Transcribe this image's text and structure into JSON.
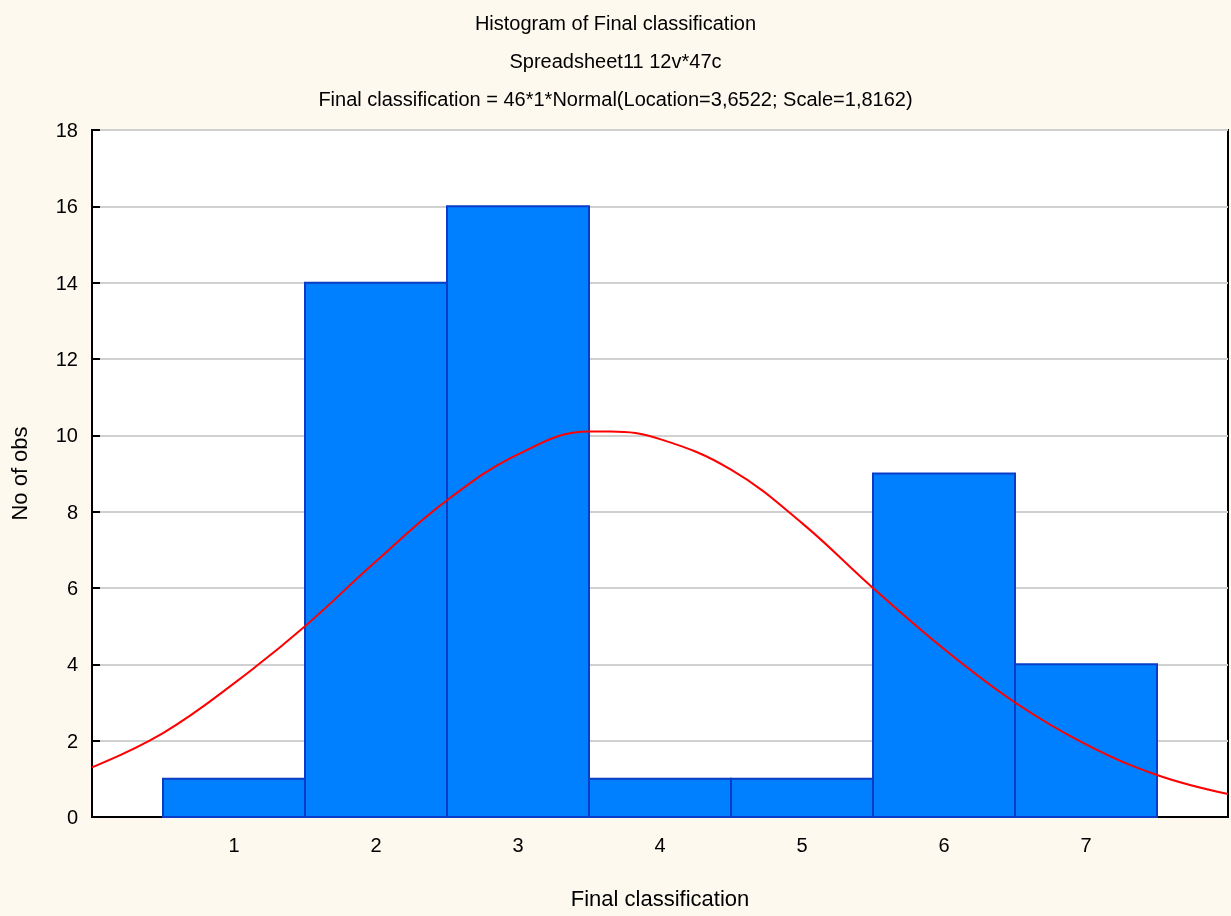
{
  "chart_data": {
    "type": "histogram",
    "title": "Histogram of Final classification",
    "subtitle": "Spreadsheet11 12v*47c",
    "annotations": [
      "Final classification = 46*1*Normal(Location=3,6522; Scale=1,8162)"
    ],
    "xlabel": "Final classification",
    "ylabel": "No of obs",
    "bins": [
      0.5,
      1.5,
      2.5,
      3.5,
      4.5,
      5.5,
      6.5,
      7.5
    ],
    "values": [
      1,
      14,
      16,
      1,
      1,
      9,
      4
    ],
    "color": "#0080ff",
    "series": [
      {
        "type": "line",
        "color": "#ff0000",
        "x": [
          0,
          0.5,
          1,
          1.5,
          2,
          2.5,
          3,
          3.5,
          3.65,
          4,
          4.5,
          5,
          5.5,
          6,
          6.5,
          7,
          7.5,
          8
        ],
        "values": [
          1.3,
          2.2,
          3.5,
          5.0,
          6.7,
          8.3,
          9.5,
          10.1,
          10.1,
          9.9,
          9.1,
          7.7,
          6.0,
          4.4,
          3.0,
          1.9,
          1.1,
          0.6
        ]
      }
    ],
    "marker": "none",
    "xlim": [
      0,
      8
    ],
    "xticks": [
      1,
      2,
      3,
      4,
      5,
      6,
      7
    ],
    "ylim": [
      0,
      18
    ],
    "yticks": [
      0,
      2,
      4,
      6,
      8,
      10,
      12,
      14,
      16,
      18
    ],
    "grid": "y"
  }
}
